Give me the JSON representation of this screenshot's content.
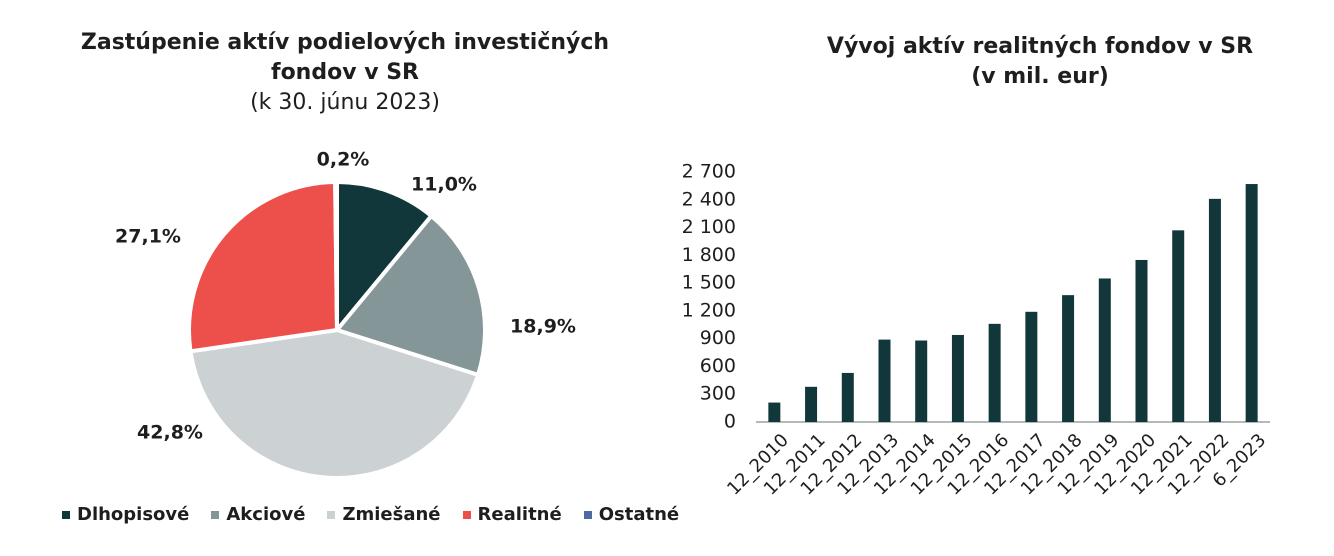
{
  "colors": {
    "dlhopisove": "#12373a",
    "akciove": "#849698",
    "zmiesane": "#ccd2d3",
    "realitne": "#ed504a",
    "ostatne": "#4f6aa3",
    "bar": "#12373a"
  },
  "chart_data": [
    {
      "type": "pie",
      "title": "Zastúpenie aktív podielových investičných fondov v SR",
      "subtitle": "(k 30. júnu 2023)",
      "legend_position": "bottom",
      "slices": [
        {
          "name": "Dlhopisové",
          "value": 11.0,
          "label": "11,0%"
        },
        {
          "name": "Akciové",
          "value": 18.9,
          "label": "18,9%"
        },
        {
          "name": "Zmiešané",
          "value": 42.8,
          "label": "42,8%"
        },
        {
          "name": "Realitné",
          "value": 27.1,
          "label": "27,1%"
        },
        {
          "name": "Ostatné",
          "value": 0.2,
          "label": "0,2%"
        }
      ]
    },
    {
      "type": "bar",
      "title": "Vývoj aktív realitných fondov v SR",
      "subtitle": "(v mil. eur)",
      "categories": [
        "12_2010",
        "12_2011",
        "12_2012",
        "12_2013",
        "12_2014",
        "12_2015",
        "12_2016",
        "12_2017",
        "12_2018",
        "12_2019",
        "12_2020",
        "12_2021",
        "12_2022",
        "6_2023"
      ],
      "values": [
        210,
        380,
        530,
        890,
        880,
        940,
        1060,
        1190,
        1370,
        1550,
        1750,
        2070,
        2410,
        2570
      ],
      "ylim": [
        0,
        2700
      ],
      "yticks": [
        0,
        300,
        600,
        900,
        1200,
        1500,
        1800,
        2100,
        2400,
        2700
      ],
      "ytick_labels": [
        "0",
        "300",
        "600",
        "900",
        "1 200",
        "1 500",
        "1 800",
        "2 100",
        "2 400",
        "2 700"
      ],
      "grid": false
    }
  ]
}
